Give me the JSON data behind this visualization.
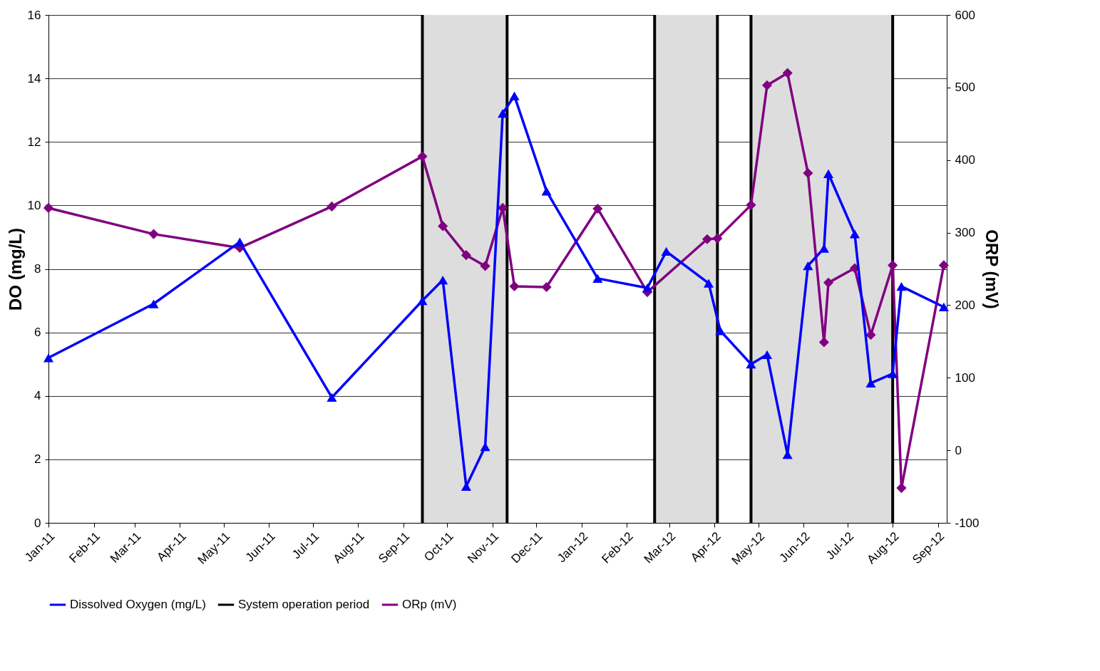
{
  "chart_data": {
    "type": "line",
    "xlabel": null,
    "ylabel": "DO (mg/L)",
    "y2label": "ORP (mV)",
    "xlim": [
      "2011-01-01",
      "2012-09-07"
    ],
    "xticks": [
      {
        "value": "2011-01-01",
        "label": "Jan-11"
      },
      {
        "value": "2011-02-01",
        "label": "Feb-11"
      },
      {
        "value": "2011-03-01",
        "label": "Mar-11"
      },
      {
        "value": "2011-04-01",
        "label": "Apr-11"
      },
      {
        "value": "2011-05-01",
        "label": "May-11"
      },
      {
        "value": "2011-06-01",
        "label": "Jun-11"
      },
      {
        "value": "2011-07-01",
        "label": "Jul-11"
      },
      {
        "value": "2011-08-01",
        "label": "Aug-11"
      },
      {
        "value": "2011-09-01",
        "label": "Sep-11"
      },
      {
        "value": "2011-10-01",
        "label": "Oct-11"
      },
      {
        "value": "2011-11-01",
        "label": "Nov-11"
      },
      {
        "value": "2011-12-01",
        "label": "Dec-11"
      },
      {
        "value": "2012-01-01",
        "label": "Jan-12"
      },
      {
        "value": "2012-02-01",
        "label": "Feb-12"
      },
      {
        "value": "2012-03-01",
        "label": "Mar-12"
      },
      {
        "value": "2012-04-01",
        "label": "Apr-12"
      },
      {
        "value": "2012-05-01",
        "label": "May-12"
      },
      {
        "value": "2012-06-01",
        "label": "Jun-12"
      },
      {
        "value": "2012-07-01",
        "label": "Jul-12"
      },
      {
        "value": "2012-08-01",
        "label": "Aug-12"
      },
      {
        "value": "2012-09-01",
        "label": "Sep-12"
      }
    ],
    "ylim": [
      0,
      16
    ],
    "yticks": [
      0,
      2,
      4,
      6,
      8,
      10,
      12,
      14,
      16
    ],
    "y2lim": [
      -100,
      600
    ],
    "y2ticks": [
      -100,
      0,
      100,
      200,
      300,
      400,
      500,
      600
    ],
    "grid": "y",
    "legend": "bottom",
    "series": [
      {
        "name": "Dissolved Oxygen (mg/L)",
        "color": "#0000ff",
        "marker": "triangle",
        "x": [
          "2011-01-01",
          "2011-03-14",
          "2011-05-12",
          "2011-07-14",
          "2011-09-14",
          "2011-09-28",
          "2011-10-14",
          "2011-10-27",
          "2011-11-08",
          "2011-11-16",
          "2011-12-08",
          "2012-01-12",
          "2012-02-15",
          "2012-02-28",
          "2012-03-28",
          "2012-04-05",
          "2012-04-26",
          "2012-05-07",
          "2012-05-21",
          "2012-06-04",
          "2012-06-15",
          "2012-06-18",
          "2012-07-06",
          "2012-07-17",
          "2012-08-01",
          "2012-08-07",
          "2012-09-05"
        ],
        "values": [
          5.2,
          6.9,
          8.85,
          3.95,
          7.0,
          7.65,
          1.15,
          2.4,
          12.9,
          13.45,
          10.45,
          7.7,
          7.4,
          8.55,
          7.55,
          6.05,
          5.0,
          5.3,
          2.15,
          8.1,
          8.65,
          11.0,
          9.1,
          4.4,
          4.7,
          7.45,
          6.8
        ]
      },
      {
        "name": "ORp (mV)",
        "color": "#800080",
        "marker": "diamond",
        "axis": "y2",
        "x": [
          "2011-01-01",
          "2011-03-14",
          "2011-05-12",
          "2011-07-14",
          "2011-09-14",
          "2011-09-28",
          "2011-10-14",
          "2011-10-27",
          "2011-11-08",
          "2011-11-16",
          "2011-12-08",
          "2012-01-12",
          "2012-02-15",
          "2012-03-27",
          "2012-04-03",
          "2012-04-26",
          "2012-05-07",
          "2012-05-21",
          "2012-06-04",
          "2012-06-15",
          "2012-06-18",
          "2012-07-06",
          "2012-07-17",
          "2012-08-01",
          "2012-08-07",
          "2012-09-05"
        ],
        "values": [
          334,
          298,
          279,
          336,
          405,
          309,
          269,
          254,
          334,
          226,
          225,
          333,
          218,
          291,
          292,
          338,
          503,
          520,
          382,
          149,
          231,
          251,
          159,
          255,
          -52,
          255
        ]
      }
    ],
    "bands": [
      {
        "axis": "x",
        "from": "2011-09-14",
        "to": "2011-11-11",
        "color": "#dddddd"
      },
      {
        "axis": "x",
        "from": "2012-02-20",
        "to": "2012-04-03",
        "color": "#dddddd"
      },
      {
        "axis": "x",
        "from": "2012-04-26",
        "to": "2012-08-01",
        "color": "#dddddd"
      }
    ],
    "ref_lines": [
      {
        "axis": "x",
        "value": "2011-09-14",
        "color": "#000000",
        "label": "System operation period"
      },
      {
        "axis": "x",
        "value": "2011-11-11",
        "color": "#000000"
      },
      {
        "axis": "x",
        "value": "2012-02-20",
        "color": "#000000"
      },
      {
        "axis": "x",
        "value": "2012-04-03",
        "color": "#000000"
      },
      {
        "axis": "x",
        "value": "2012-04-26",
        "color": "#000000"
      },
      {
        "axis": "x",
        "value": "2012-08-01",
        "color": "#000000"
      }
    ]
  }
}
